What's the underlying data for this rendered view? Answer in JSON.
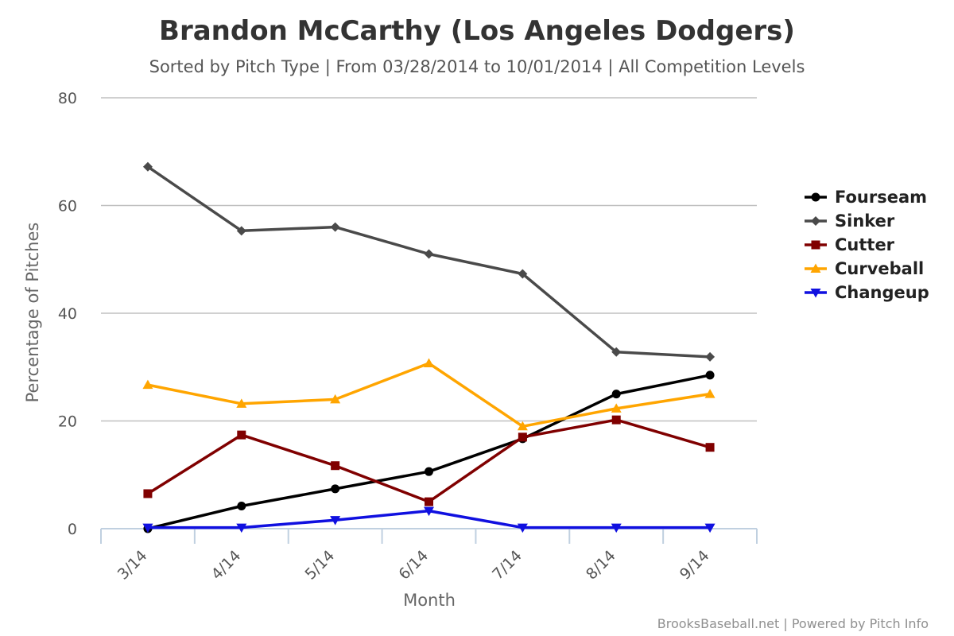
{
  "chart_data": {
    "type": "line",
    "title": "Brandon McCarthy (Los Angeles Dodgers)",
    "subtitle": "Sorted by Pitch Type | From 03/28/2014 to 10/01/2014 | All Competition Levels",
    "xlabel": "Month",
    "ylabel": "Percentage of Pitches",
    "categories": [
      "3/14",
      "4/14",
      "5/14",
      "6/14",
      "7/14",
      "8/14",
      "9/14"
    ],
    "ylim": [
      0,
      80
    ],
    "yticks": [
      0,
      20,
      40,
      60,
      80
    ],
    "grid": true,
    "legend_position": "right",
    "series": [
      {
        "name": "Fourseam",
        "color": "#000000",
        "marker": "circle",
        "values": [
          0,
          4.2,
          7.4,
          10.6,
          16.7,
          25.0,
          28.5
        ]
      },
      {
        "name": "Sinker",
        "color": "#4a4a4a",
        "marker": "diamond",
        "values": [
          67.2,
          55.3,
          56.0,
          51.0,
          47.3,
          32.8,
          31.9
        ]
      },
      {
        "name": "Cutter",
        "color": "#800000",
        "marker": "square",
        "values": [
          6.5,
          17.4,
          11.7,
          5.0,
          17.0,
          20.2,
          15.1
        ]
      },
      {
        "name": "Curveball",
        "color": "#ffa500",
        "marker": "triangle",
        "values": [
          26.7,
          23.2,
          24.0,
          30.7,
          19.0,
          22.3,
          25.0
        ]
      },
      {
        "name": "Changeup",
        "color": "#1010e0",
        "marker": "triangle-down",
        "values": [
          0.2,
          0.2,
          1.6,
          3.3,
          0.2,
          0.2,
          0.2
        ]
      }
    ]
  },
  "credits": "BrooksBaseball.net | Powered by Pitch Info"
}
